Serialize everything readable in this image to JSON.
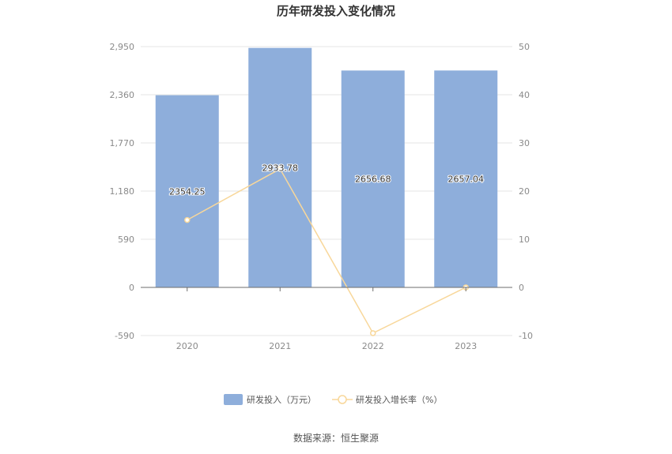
{
  "chart_data": {
    "type": "bar",
    "title": "历年研发投入变化情况",
    "categories": [
      "2020",
      "2021",
      "2022",
      "2023"
    ],
    "series": [
      {
        "name": "研发投入（万元）",
        "type": "bar",
        "axis": "left",
        "values": [
          2354.25,
          2933.78,
          2656.68,
          2657.04
        ],
        "color": "#8eaedb"
      },
      {
        "name": "研发投入增长率（%）",
        "type": "line",
        "axis": "right",
        "values": [
          14.0,
          24.6,
          -9.5,
          0.01
        ],
        "color": "#f8d79a"
      }
    ],
    "data_labels": [
      "2354.25",
      "2933.78",
      "2656.68",
      "2657.04"
    ],
    "y_left": {
      "ticks": [
        "2,950",
        "2,360",
        "1,770",
        "1,180",
        "590",
        "0",
        "-590"
      ],
      "ylim": [
        -590,
        2950
      ]
    },
    "y_right": {
      "ticks": [
        "50",
        "40",
        "30",
        "20",
        "10",
        "0",
        "-10"
      ],
      "ylim": [
        -10,
        50
      ]
    },
    "grid": true,
    "legend_position": "bottom"
  },
  "source": "数据来源：恒生聚源"
}
